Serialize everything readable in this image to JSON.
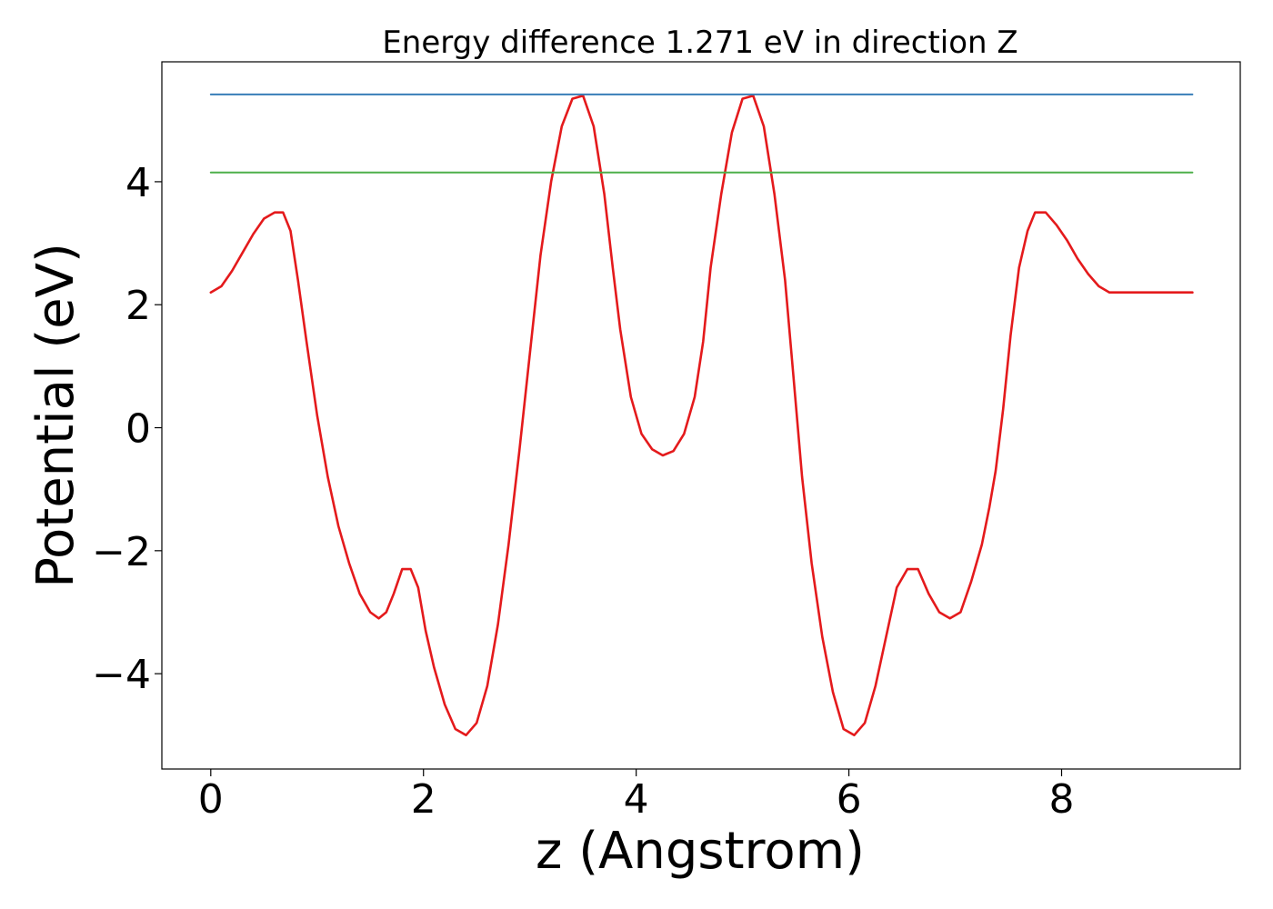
{
  "chart_data": {
    "type": "line",
    "title": "Energy difference 1.271 eV in direction Z",
    "xlabel": "z (Angstrom)",
    "ylabel": "Potential (eV)",
    "xlim": [
      -0.46,
      9.68
    ],
    "ylim": [
      -5.55,
      5.95
    ],
    "xticks": [
      0,
      2,
      4,
      6,
      8
    ],
    "xtick_labels": [
      "0",
      "2",
      "4",
      "6",
      "8"
    ],
    "yticks": [
      -4,
      -2,
      0,
      2,
      4
    ],
    "ytick_labels": [
      "−4",
      "−2",
      "0",
      "2",
      "4"
    ],
    "grid": false,
    "colors": {
      "potential": "#e41a1c",
      "upper_level": "#377eb8",
      "lower_level": "#4daf4a"
    },
    "series": [
      {
        "key": "potential",
        "x": [
          0.0,
          0.1,
          0.2,
          0.3,
          0.4,
          0.5,
          0.6,
          0.68,
          0.75,
          0.82,
          0.9,
          1.0,
          1.1,
          1.2,
          1.3,
          1.4,
          1.5,
          1.58,
          1.65,
          1.72,
          1.8,
          1.88,
          1.95,
          2.02,
          2.1,
          2.2,
          2.3,
          2.4,
          2.5,
          2.6,
          2.7,
          2.8,
          2.9,
          3.0,
          3.1,
          3.2,
          3.3,
          3.4,
          3.5,
          3.6,
          3.7,
          3.78,
          3.85,
          3.95,
          4.05,
          4.15,
          4.25,
          4.35,
          4.45,
          4.55,
          4.63,
          4.7,
          4.8,
          4.9,
          5.0,
          5.1,
          5.2,
          5.3,
          5.4,
          5.48,
          5.56,
          5.65,
          5.75,
          5.85,
          5.95,
          6.05,
          6.15,
          6.25,
          6.35,
          6.45,
          6.55,
          6.65,
          6.75,
          6.85,
          6.95,
          7.05,
          7.15,
          7.25,
          7.32,
          7.38,
          7.45,
          7.52,
          7.6,
          7.68,
          7.75,
          7.85,
          7.95,
          8.05,
          8.15,
          8.25,
          8.35,
          8.45,
          8.52,
          8.6,
          8.68,
          8.8,
          8.9,
          9.0,
          9.1,
          9.23
        ],
        "y": [
          2.2,
          2.3,
          2.55,
          2.85,
          3.15,
          3.4,
          3.5,
          3.5,
          3.2,
          2.4,
          1.4,
          0.2,
          -0.8,
          -1.6,
          -2.2,
          -2.7,
          -3.0,
          -3.1,
          -3.0,
          -2.7,
          -2.3,
          -2.3,
          -2.6,
          -3.3,
          -3.9,
          -4.5,
          -4.9,
          -5.0,
          -4.8,
          -4.2,
          -3.2,
          -1.9,
          -0.4,
          1.2,
          2.8,
          4.0,
          4.9,
          5.35,
          5.4,
          4.9,
          3.8,
          2.6,
          1.6,
          0.5,
          -0.1,
          -0.35,
          -0.45,
          -0.38,
          -0.1,
          0.5,
          1.4,
          2.6,
          3.8,
          4.8,
          5.35,
          5.4,
          4.9,
          3.8,
          2.4,
          0.8,
          -0.8,
          -2.2,
          -3.4,
          -4.3,
          -4.9,
          -5.0,
          -4.8,
          -4.2,
          -3.4,
          -2.6,
          -2.3,
          -2.3,
          -2.7,
          -3.0,
          -3.1,
          -3.0,
          -2.5,
          -1.9,
          -1.3,
          -0.7,
          0.3,
          1.5,
          2.6,
          3.2,
          3.5,
          3.5,
          3.3,
          3.05,
          2.75,
          2.5,
          2.3,
          2.2,
          2.2,
          2.2,
          2.2,
          2.2,
          2.2,
          2.2,
          2.2,
          2.2
        ]
      },
      {
        "key": "upper_level",
        "x": [
          0.0,
          9.23
        ],
        "y": [
          5.42,
          5.42
        ]
      },
      {
        "key": "lower_level",
        "x": [
          0.0,
          9.23
        ],
        "y": [
          4.15,
          4.15
        ]
      }
    ]
  }
}
